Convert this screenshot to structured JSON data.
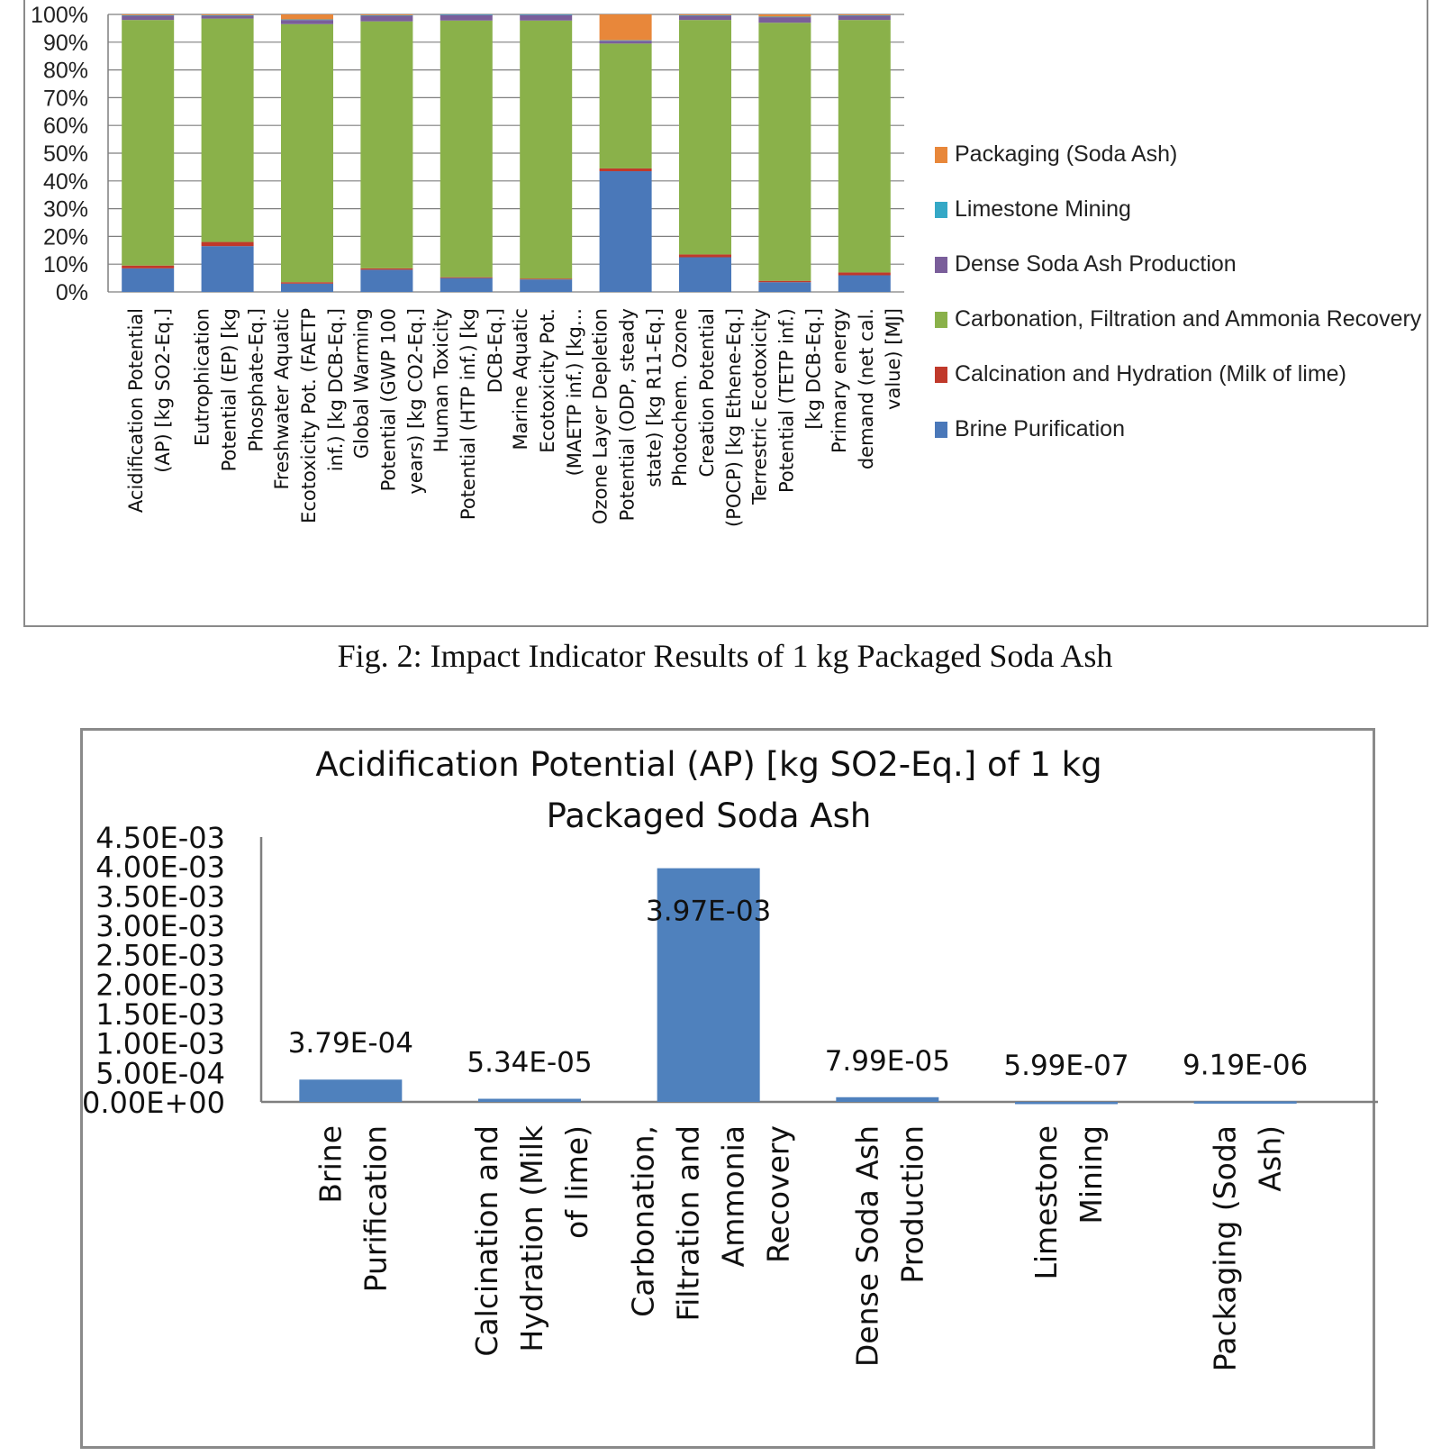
{
  "caption": "Fig. 2: Impact Indicator Results of 1 kg Packaged Soda Ash",
  "chart_data": [
    {
      "type": "bar",
      "stacked": true,
      "percent_stacked": true,
      "title": "",
      "xlabel": "",
      "ylabel": "",
      "ylim": [
        0,
        100
      ],
      "yticks": [
        "0%",
        "10%",
        "20%",
        "30%",
        "40%",
        "50%",
        "60%",
        "70%",
        "80%",
        "90%",
        "100%"
      ],
      "grid": true,
      "legend_position": "right",
      "colors": {
        "Brine Purification": "#4a78b9",
        "Calcination and Hydration (Milk of lime)": "#c0392b",
        "Carbonation, Filtration and Ammonia Recovery": "#8ab14a",
        "Dense Soda Ash Production": "#7a5e9a",
        "Limestone Mining": "#35a8c6",
        "Packaging (Soda Ash)": "#e8873a"
      },
      "legend": [
        "Packaging (Soda Ash)",
        "Limestone Mining",
        "Dense Soda Ash Production",
        "Carbonation, Filtration and Ammonia Recovery",
        "Calcination and Hydration (Milk of lime)",
        "Brine Purification"
      ],
      "categories": [
        [
          "Acidification Potential",
          "(AP) [kg SO2-Eq.]"
        ],
        [
          "Eutrophication",
          "Potential (EP) [kg",
          "Phosphate-Eq.]"
        ],
        [
          "Freshwater Aquatic",
          "Ecotoxicity Pot. (FAETP",
          "inf.) [kg DCB-Eq.]"
        ],
        [
          "Global Warming",
          "Potential (GWP 100",
          "years) [kg CO2-Eq.]"
        ],
        [
          "Human Toxicity",
          "Potential (HTP inf.) [kg",
          "DCB-Eq.]"
        ],
        [
          "Marine Aquatic",
          "Ecotoxicity Pot.",
          "(MAETP inf.) [kg..."
        ],
        [
          "Ozone Layer Depletion",
          "Potential (ODP, steady",
          "state) [kg R11-Eq.]"
        ],
        [
          "Photochem. Ozone",
          "Creation Potential",
          "(POCP) [kg Ethene-Eq.]"
        ],
        [
          "Terrestric Ecotoxicity",
          "Potential (TETP inf.)",
          "[kg DCB-Eq.]"
        ],
        [
          "Primary energy",
          "demand (net cal.",
          "value) [MJ]"
        ]
      ],
      "series": [
        {
          "name": "Brine Purification",
          "values": [
            8.5,
            16.5,
            3,
            8,
            5,
            4.5,
            43.5,
            12.5,
            3.5,
            6
          ]
        },
        {
          "name": "Calcination and Hydration (Milk of lime)",
          "values": [
            1,
            1.5,
            0.5,
            0.5,
            0.3,
            0.3,
            1,
            1,
            0.5,
            1
          ]
        },
        {
          "name": "Carbonation, Filtration and Ammonia Recovery",
          "values": [
            88.5,
            80.5,
            93,
            89,
            92.5,
            93,
            45,
            84.5,
            93,
            91
          ]
        },
        {
          "name": "Dense Soda Ash Production",
          "values": [
            1.5,
            1,
            1.5,
            2,
            2,
            2,
            1,
            1.5,
            2,
            1.5
          ]
        },
        {
          "name": "Limestone Mining",
          "values": [
            0.2,
            0.2,
            0.2,
            0.2,
            0.2,
            0.2,
            0.2,
            0.2,
            0.2,
            0.2
          ]
        },
        {
          "name": "Packaging (Soda Ash)",
          "values": [
            0.3,
            0.3,
            1.8,
            0.3,
            0,
            0,
            9.3,
            0.3,
            0.8,
            0.3
          ]
        }
      ]
    },
    {
      "type": "bar",
      "title": [
        "Acidification Potential (AP) [kg SO2-Eq.] of 1 kg",
        "Packaged Soda Ash"
      ],
      "xlabel": "",
      "ylabel": "",
      "ylim": [
        0,
        0.0045
      ],
      "yticks": [
        "0.00E+00",
        "5.00E-04",
        "1.00E-03",
        "1.50E-03",
        "2.00E-03",
        "2.50E-03",
        "3.00E-03",
        "3.50E-03",
        "4.00E-03",
        "4.50E-03"
      ],
      "color": "#4f81bd",
      "grid": false,
      "categories": [
        [
          "Brine",
          "Purification"
        ],
        [
          "Calcination and",
          "Hydration (Milk",
          "of lime)"
        ],
        [
          "Carbonation,",
          "Filtration and",
          "Ammonia",
          "Recovery"
        ],
        [
          "Dense Soda Ash",
          "Production"
        ],
        [
          "Limestone",
          "Mining"
        ],
        [
          "Packaging (Soda",
          "Ash)"
        ]
      ],
      "values": [
        0.000379,
        5.34e-05,
        0.00397,
        7.99e-05,
        5.99e-07,
        9.19e-06
      ],
      "data_labels": [
        "3.79E-04",
        "5.34E-05",
        "3.97E-03",
        "7.99E-05",
        "5.99E-07",
        "9.19E-06"
      ]
    }
  ]
}
